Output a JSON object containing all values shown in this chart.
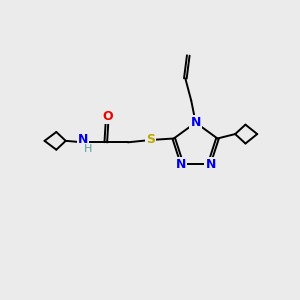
{
  "background_color": "#ebebeb",
  "bond_color": "#000000",
  "N_color": "#0000ee",
  "O_color": "#ee0000",
  "S_color": "#bbaa00",
  "H_color": "#5f9ea0",
  "figsize": [
    3.0,
    3.0
  ],
  "dpi": 100,
  "xlim": [
    0,
    10
  ],
  "ylim": [
    0,
    10
  ]
}
